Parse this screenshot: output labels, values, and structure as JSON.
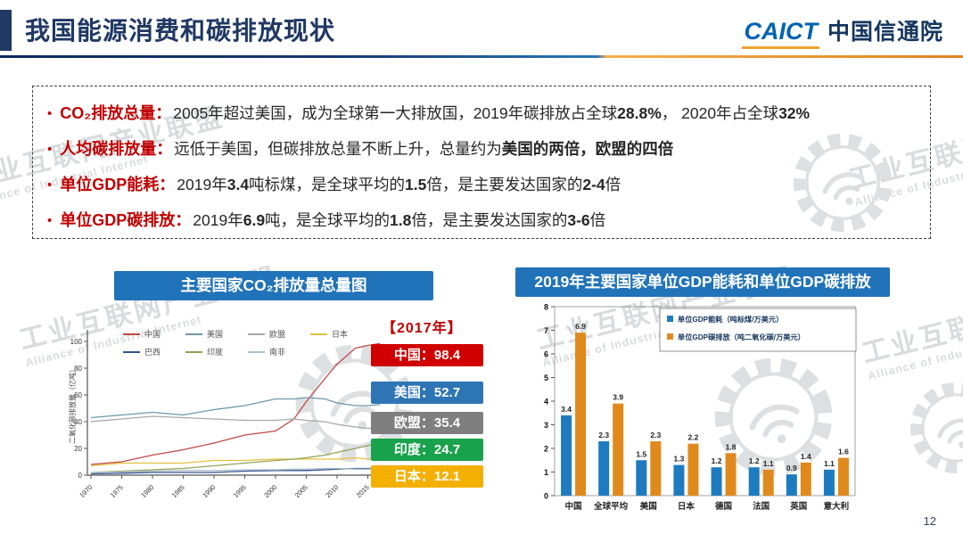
{
  "header": {
    "title": "我国能源消费和碳排放现状",
    "logo_caict": "CAICT",
    "logo_name": "中国信通院"
  },
  "page_number": "12",
  "watermark": {
    "cn": "工业互联网产业联盟",
    "en": "Alliance of Industrial Internet"
  },
  "bullets": [
    {
      "label": "CO₂排放总量：",
      "segments": [
        {
          "t": "2005年超过美国，成为全球第一大排放国，2019年碳排放占全球"
        },
        {
          "t": "28.8%",
          "b": true
        },
        {
          "t": "， 2020年占全球"
        },
        {
          "t": "32%",
          "b": true
        }
      ]
    },
    {
      "label": "人均碳排放量：",
      "segments": [
        {
          "t": "远低于美国，但碳排放总量不断上升，总量约为"
        },
        {
          "t": "美国的两倍，欧盟的四倍",
          "b": true
        }
      ]
    },
    {
      "label": "单位GDP能耗：",
      "segments": [
        {
          "t": "2019年"
        },
        {
          "t": "3.4",
          "b": true
        },
        {
          "t": "吨标煤，是全球平均的"
        },
        {
          "t": "1.5",
          "b": true
        },
        {
          "t": "倍，是主要发达国家的"
        },
        {
          "t": "2-4",
          "b": true
        },
        {
          "t": "倍"
        }
      ]
    },
    {
      "label": "单位GDP碳排放：",
      "segments": [
        {
          "t": "2019年"
        },
        {
          "t": "6.9",
          "b": true
        },
        {
          "t": "吨，是全球平均的"
        },
        {
          "t": "1.8",
          "b": true
        },
        {
          "t": "倍，是主要发达国家的"
        },
        {
          "t": "3-6",
          "b": true
        },
        {
          "t": "倍"
        }
      ]
    }
  ],
  "chart_data": [
    {
      "type": "line",
      "title": "主要国家CO₂排放量总量图",
      "ylabel": "二氧化碳排放量（亿吨）",
      "annotation": "【2017年】",
      "ylim": [
        0,
        100
      ],
      "yticks": [
        0,
        20,
        40,
        60,
        80,
        100
      ],
      "xticks": [
        1970,
        1975,
        1980,
        1985,
        1990,
        1995,
        2000,
        2005,
        2010,
        2015
      ],
      "x": [
        1970,
        1975,
        1980,
        1985,
        1990,
        1995,
        2000,
        2003,
        2005,
        2008,
        2010,
        2013,
        2015,
        2017
      ],
      "series": [
        {
          "name": "中国",
          "color": "#be4b48",
          "values": [
            8,
            10,
            15,
            19,
            24,
            30,
            33,
            42,
            55,
            72,
            83,
            95,
            97,
            98.4
          ]
        },
        {
          "name": "美国",
          "color": "#6e98a7",
          "values": [
            43,
            45,
            47,
            45,
            49,
            52,
            57,
            57,
            58,
            57,
            54,
            52,
            52,
            52.7
          ]
        },
        {
          "name": "欧盟",
          "color": "#a8a8a8",
          "values": [
            40,
            42,
            44,
            43,
            42,
            41,
            41,
            42,
            41,
            40,
            38,
            36,
            35,
            35.4
          ]
        },
        {
          "name": "日本",
          "color": "#e3c13f",
          "values": [
            7,
            9,
            9,
            9,
            11,
            11,
            12,
            12,
            12,
            12,
            12,
            13,
            12,
            12.1
          ]
        },
        {
          "name": "巴西",
          "color": "#31548f",
          "values": [
            1,
            1.5,
            2,
            2,
            2,
            3,
            3.5,
            3.5,
            3.5,
            4,
            4.5,
            5,
            5,
            5
          ]
        },
        {
          "name": "印度",
          "color": "#94a354",
          "values": [
            2,
            3,
            4,
            5,
            7,
            9,
            11,
            12,
            13,
            15,
            17,
            20,
            22,
            24.7
          ]
        },
        {
          "name": "南非",
          "color": "#aebfc9",
          "values": [
            2,
            2.5,
            3,
            3.5,
            3.5,
            4,
            4,
            4.5,
            4.5,
            5,
            5,
            4.5,
            4.5,
            4.5
          ]
        }
      ],
      "badges": [
        {
          "label": "中国",
          "value": "98.4",
          "color": "#d00000"
        },
        {
          "label": "美国",
          "value": "52.7",
          "color": "#2e75b6"
        },
        {
          "label": "欧盟",
          "value": "35.4",
          "color": "#7f7f7f"
        },
        {
          "label": "印度",
          "value": "24.7",
          "color": "#18a24b"
        },
        {
          "label": "日本",
          "value": "12.1",
          "color": "#f4b000"
        }
      ]
    },
    {
      "type": "bar",
      "title": "2019年主要国家单位GDP能耗和单位GDP碳排放",
      "categories": [
        "中国",
        "全球平均",
        "美国",
        "日本",
        "德国",
        "法国",
        "英国",
        "意大利"
      ],
      "ylim": [
        0,
        8
      ],
      "yticks": [
        0,
        1,
        2,
        3,
        4,
        5,
        6,
        7,
        8
      ],
      "series": [
        {
          "name": "单位GDP能耗（吨标煤/万美元）",
          "color": "#1f7bbf",
          "values": [
            3.4,
            2.3,
            1.5,
            1.3,
            1.2,
            1.2,
            0.9,
            1.1
          ]
        },
        {
          "name": "单位GDP碳排放（吨二氧化碳/万美元）",
          "color": "#e08a1e",
          "values": [
            6.9,
            3.9,
            2.3,
            2.2,
            1.8,
            1.1,
            1.4,
            1.6
          ]
        }
      ]
    }
  ]
}
